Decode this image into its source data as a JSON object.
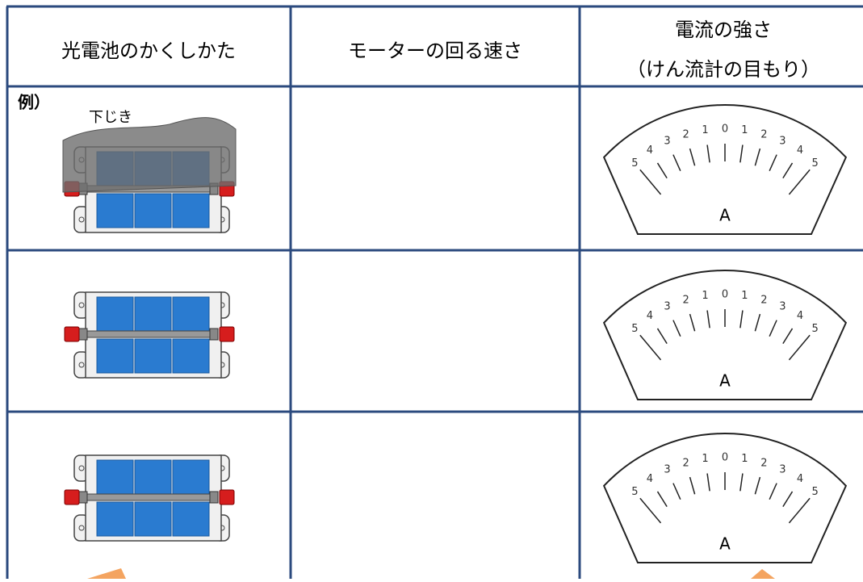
{
  "table": {
    "headers": [
      "光電池のかくしかた",
      "モーターの回る速さ",
      "電流の強さ",
      "（けん流計の目もり）"
    ],
    "example_label": "例）",
    "sheet_label": "下じき"
  },
  "meter": {
    "scale": [
      "5",
      "4",
      "3",
      "2",
      "1",
      "0",
      "1",
      "2",
      "3",
      "4",
      "5"
    ],
    "unit": "A"
  }
}
